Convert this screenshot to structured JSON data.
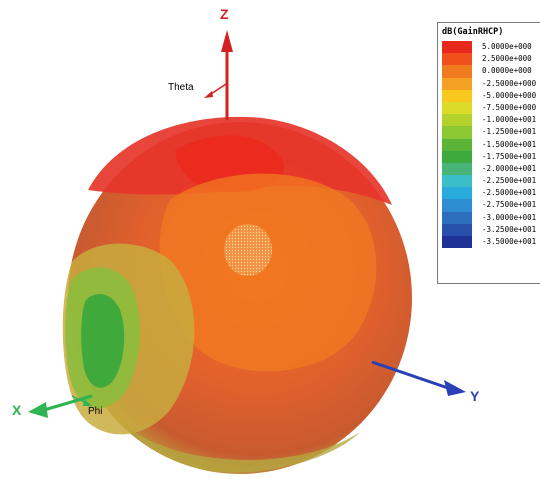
{
  "chart_data": {
    "type": "heatmap",
    "quantity": "dB(GainRHCP)",
    "axes": {
      "x": "X",
      "y": "Y",
      "z": "Z"
    },
    "angles": {
      "theta": "Theta",
      "phi": "Phi"
    },
    "legend": {
      "title": "dB(GainRHCP)",
      "placement": "top-right",
      "levels": [
        {
          "label": "5.0000e+000",
          "value": 5.0,
          "color": "#e8281c"
        },
        {
          "label": "2.5000e+000",
          "value": 2.5,
          "color": "#f0501c"
        },
        {
          "label": "0.0000e+000",
          "value": 0.0,
          "color": "#f07a1e"
        },
        {
          "label": "-2.5000e+000",
          "value": -2.5,
          "color": "#f4a024"
        },
        {
          "label": "-5.0000e+000",
          "value": -5.0,
          "color": "#f8c81c"
        },
        {
          "label": "-7.5000e+000",
          "value": -7.5,
          "color": "#dcdc28"
        },
        {
          "label": "-1.0000e+001",
          "value": -10.0,
          "color": "#b4d22c"
        },
        {
          "label": "-1.2500e+001",
          "value": -12.5,
          "color": "#8cc832"
        },
        {
          "label": "-1.5000e+001",
          "value": -15.0,
          "color": "#5ab436"
        },
        {
          "label": "-1.7500e+001",
          "value": -17.5,
          "color": "#3caa3c"
        },
        {
          "label": "-2.0000e+001",
          "value": -20.0,
          "color": "#48b478"
        },
        {
          "label": "-2.2500e+001",
          "value": -22.5,
          "color": "#3cbec8"
        },
        {
          "label": "-2.5000e+001",
          "value": -25.0,
          "color": "#28aadc"
        },
        {
          "label": "-2.7500e+001",
          "value": -27.5,
          "color": "#2d8cd2"
        },
        {
          "label": "-3.0000e+001",
          "value": -30.0,
          "color": "#2d6ebe"
        },
        {
          "label": "-3.2500e+001",
          "value": -32.5,
          "color": "#2850aa"
        },
        {
          "label": "-3.5000e+001",
          "value": -35.0,
          "color": "#1e3296"
        }
      ]
    },
    "colors": {
      "z_axis": "#d42020",
      "y_axis": "#2a40b8",
      "x_axis": "#2eb450",
      "surface_main": "#e0602a",
      "surface_top": "#e42c24",
      "surface_rim": "#c8b040",
      "surface_ring": "#8cbc40",
      "surface_hole": "#3ca83c"
    }
  }
}
